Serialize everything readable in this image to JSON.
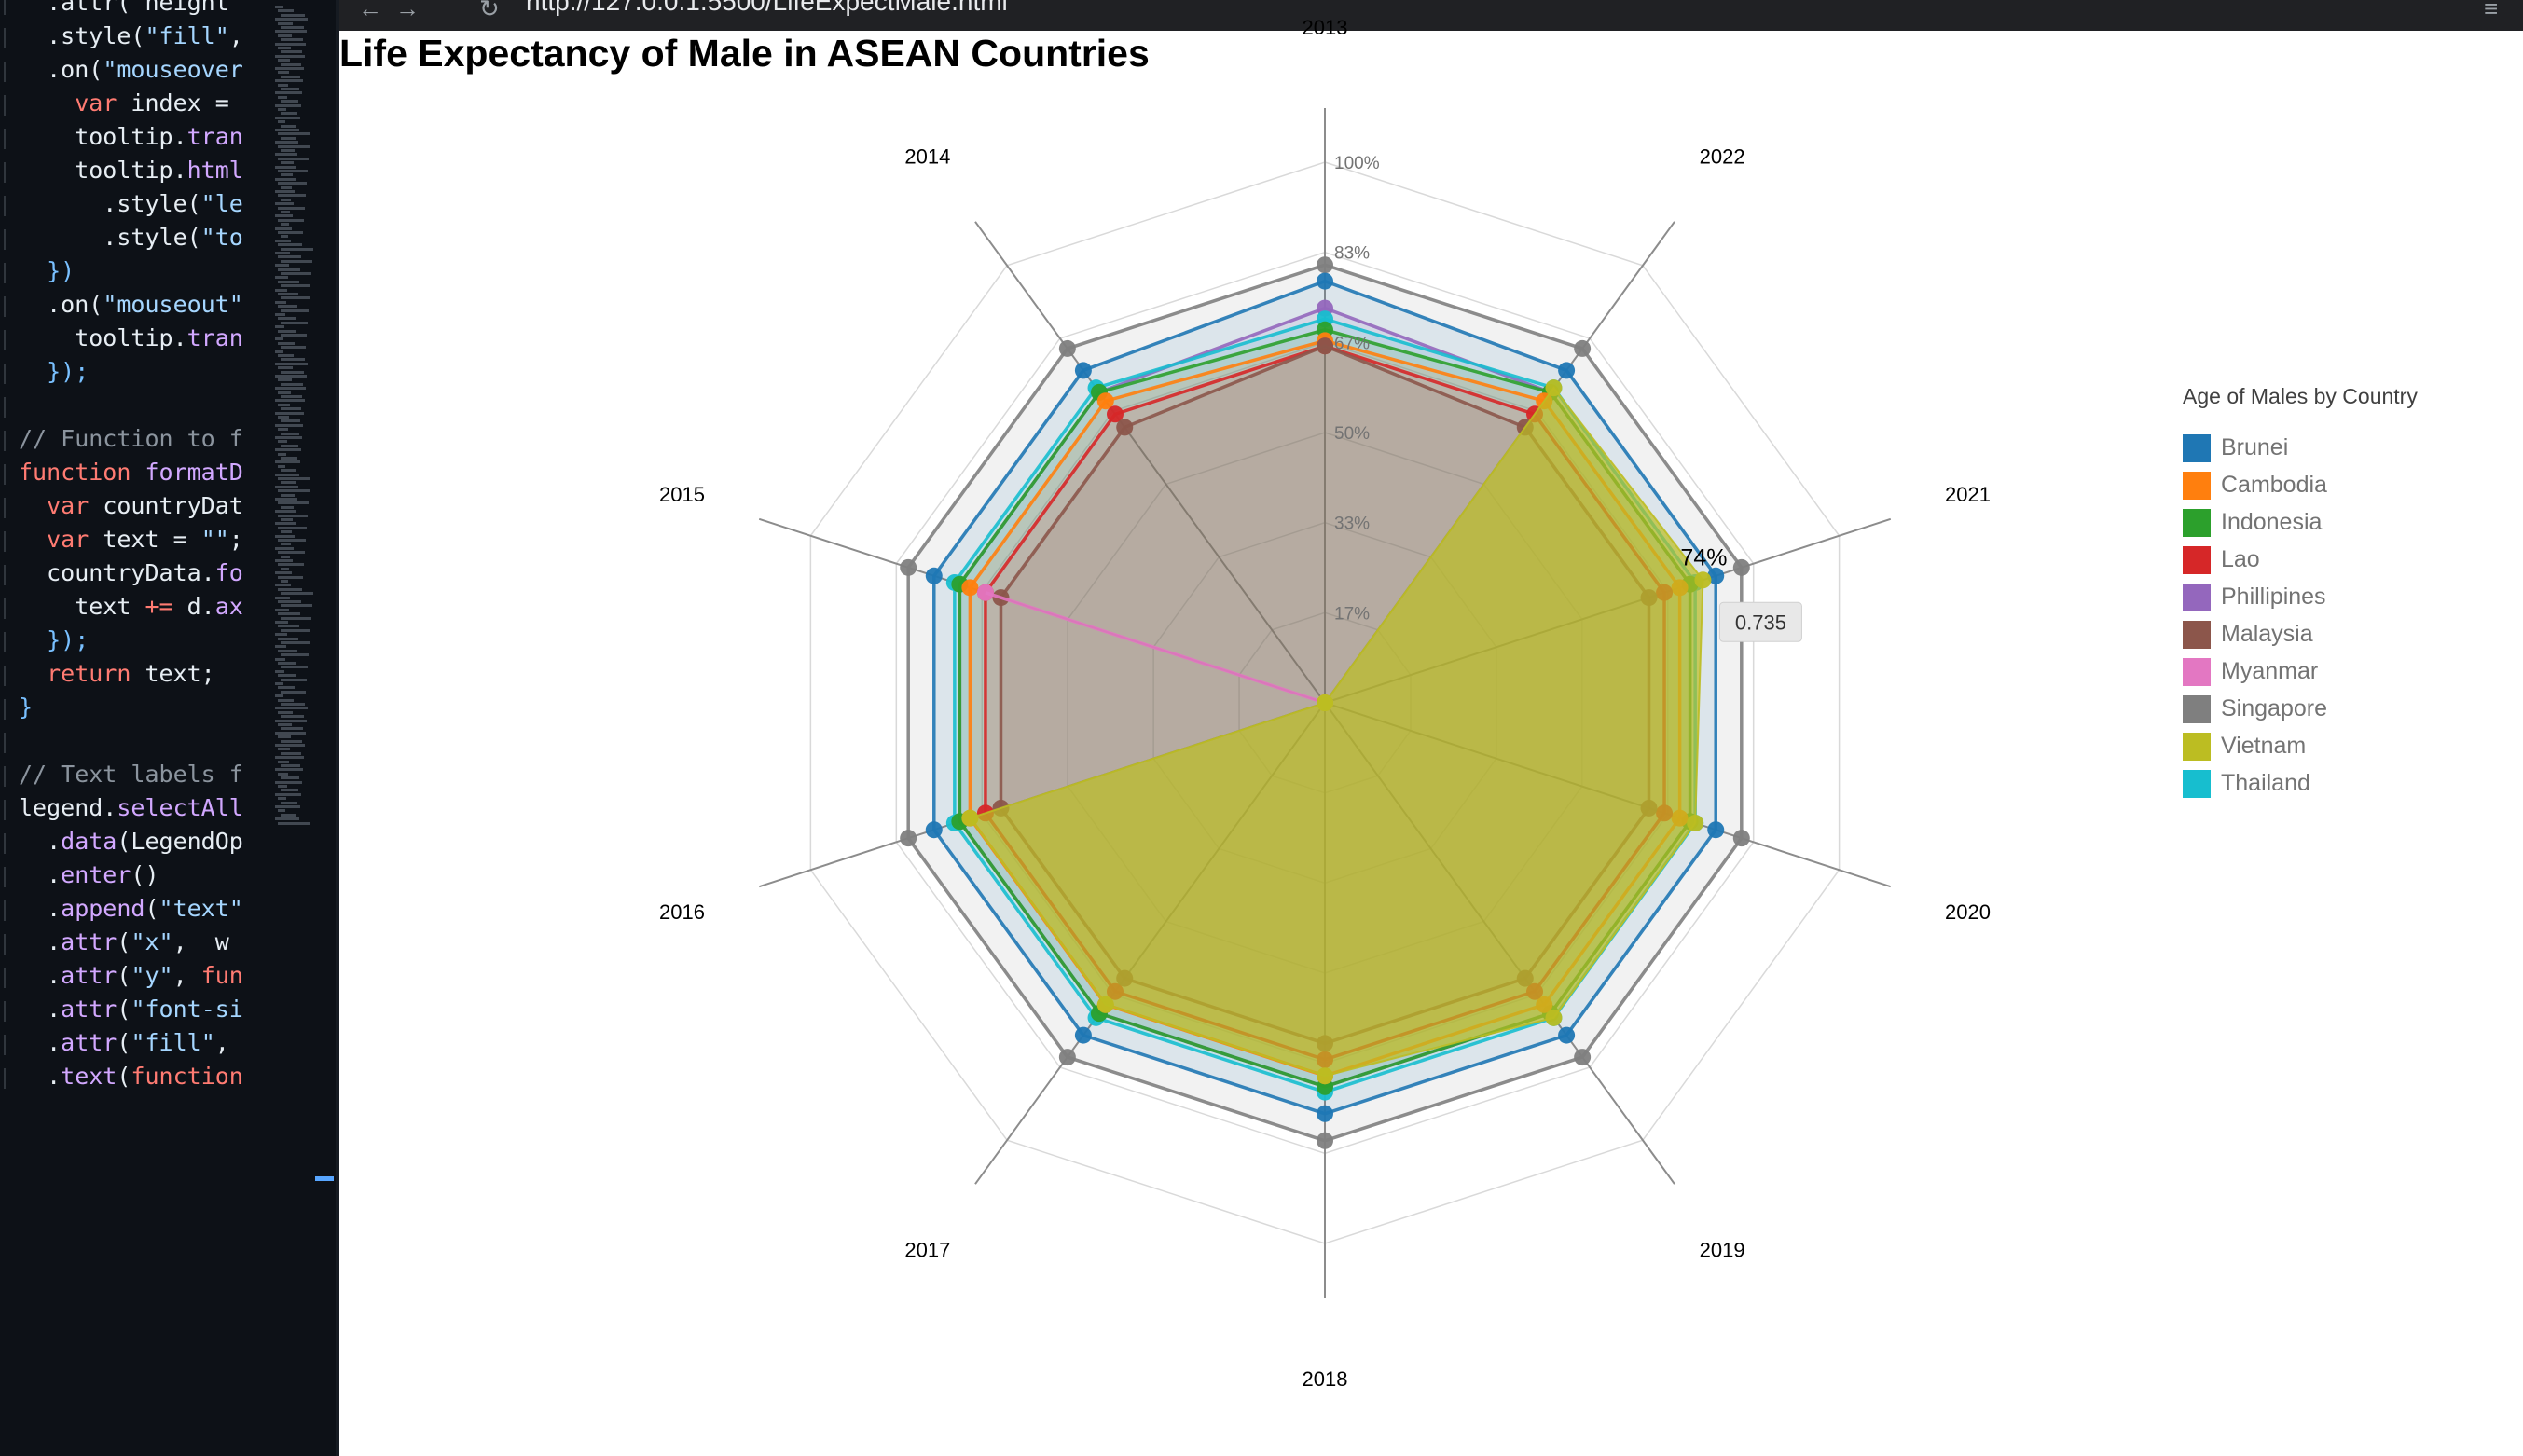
{
  "editor": {
    "lines": [
      [
        [
          "  .attr(\"height\"",
          ""
        ]
      ],
      [
        [
          "  .style(",
          ""
        ],
        [
          "\"fill\"",
          "str"
        ],
        [
          ",",
          ""
        ]
      ],
      [
        [
          "  .on(",
          ""
        ],
        [
          "\"mouseover",
          "str"
        ]
      ],
      [
        [
          "    ",
          ""
        ],
        [
          "var",
          "kw"
        ],
        [
          " index =",
          ""
        ]
      ],
      [
        [
          "    tooltip.",
          ""
        ],
        [
          "tran",
          "fn"
        ]
      ],
      [
        [
          "    tooltip.",
          ""
        ],
        [
          "html",
          "fn"
        ]
      ],
      [
        [
          "      .style(",
          ""
        ],
        [
          "\"le",
          "str"
        ]
      ],
      [
        [
          "      .style(",
          ""
        ],
        [
          "\"to",
          "str"
        ]
      ],
      [
        [
          "  })",
          "pl"
        ]
      ],
      [
        [
          "  .on(",
          ""
        ],
        [
          "\"mouseout\"",
          "str"
        ]
      ],
      [
        [
          "    tooltip.",
          ""
        ],
        [
          "tran",
          "fn"
        ]
      ],
      [
        [
          "  });",
          "pl"
        ]
      ],
      [
        [
          "",
          ""
        ]
      ],
      [
        [
          "// Function to f",
          "cm"
        ]
      ],
      [
        [
          "function",
          "kw"
        ],
        [
          " formatD",
          "fn"
        ]
      ],
      [
        [
          "  ",
          ""
        ],
        [
          "var",
          "kw"
        ],
        [
          " countryDat",
          ""
        ]
      ],
      [
        [
          "  ",
          ""
        ],
        [
          "var",
          "kw"
        ],
        [
          " text = ",
          ""
        ],
        [
          "\"\"",
          "str"
        ],
        [
          ";",
          ""
        ]
      ],
      [
        [
          "  countryData.",
          ""
        ],
        [
          "fo",
          "fn"
        ]
      ],
      [
        [
          "    text ",
          ""
        ],
        [
          "+=",
          "kw"
        ],
        [
          " d.",
          ""
        ],
        [
          "ax",
          "fn"
        ]
      ],
      [
        [
          "  });",
          "pl"
        ]
      ],
      [
        [
          "  ",
          ""
        ],
        [
          "return",
          "kw"
        ],
        [
          " text;",
          ""
        ]
      ],
      [
        [
          "}",
          "pl"
        ]
      ],
      [
        [
          "",
          ""
        ]
      ],
      [
        [
          "// Text labels f",
          "cm"
        ]
      ],
      [
        [
          "legend.",
          ""
        ],
        [
          "selectAll",
          "fn"
        ]
      ],
      [
        [
          "  .",
          ""
        ],
        [
          "data",
          "fn"
        ],
        [
          "(LegendOp",
          ""
        ]
      ],
      [
        [
          "  .",
          ""
        ],
        [
          "enter",
          "fn"
        ],
        [
          "()",
          ""
        ]
      ],
      [
        [
          "  .",
          ""
        ],
        [
          "append",
          "fn"
        ],
        [
          "(",
          ""
        ],
        [
          "\"text\"",
          "str"
        ]
      ],
      [
        [
          "  .",
          ""
        ],
        [
          "attr",
          "fn"
        ],
        [
          "(",
          ""
        ],
        [
          "\"x\"",
          "str"
        ],
        [
          ",  w",
          ""
        ]
      ],
      [
        [
          "  .",
          ""
        ],
        [
          "attr",
          "fn"
        ],
        [
          "(",
          ""
        ],
        [
          "\"y\"",
          "str"
        ],
        [
          ", ",
          ""
        ],
        [
          "fun",
          "kw"
        ]
      ],
      [
        [
          "  .",
          ""
        ],
        [
          "attr",
          "fn"
        ],
        [
          "(",
          ""
        ],
        [
          "\"font-si",
          "str"
        ]
      ],
      [
        [
          "  .",
          ""
        ],
        [
          "attr",
          "fn"
        ],
        [
          "(",
          ""
        ],
        [
          "\"fill\"",
          "str"
        ],
        [
          ",",
          ""
        ]
      ],
      [
        [
          "  .",
          ""
        ],
        [
          "text",
          "fn"
        ],
        [
          "(",
          ""
        ],
        [
          "function",
          "kw"
        ]
      ]
    ]
  },
  "browser": {
    "url": "http://127.0.0.1:5500/LifeExpectMale.html"
  },
  "page": {
    "title": "Life Expectancy of Male in ASEAN Countries"
  },
  "chart_data": {
    "type": "radar",
    "title": "Life Expectancy of Male in ASEAN Countries",
    "axes": [
      "2013",
      "2022",
      "2021",
      "2020",
      "2019",
      "2018",
      "2017",
      "2016",
      "2015",
      "2014"
    ],
    "rlim": [
      0,
      1
    ],
    "ticks": [
      "17%",
      "33%",
      "50%",
      "67%",
      "83%",
      "100%"
    ],
    "legend_title": "Age of Males by Country",
    "legend_position": "right",
    "series": [
      {
        "name": "Singapore",
        "color": "#7f7f7f",
        "values": [
          0.81,
          0.81,
          0.81,
          0.81,
          0.81,
          0.81,
          0.81,
          0.81,
          0.81,
          0.81
        ]
      },
      {
        "name": "Brunei",
        "color": "#1f77b4",
        "values": [
          0.78,
          0.76,
          0.76,
          0.76,
          0.76,
          0.76,
          0.76,
          0.76,
          0.76,
          0.76
        ]
      },
      {
        "name": "Phillipines",
        "color": "#9467bd",
        "values": [
          0.73,
          0.71,
          0.71,
          0.71,
          0.71,
          0.71,
          0.71,
          0.71,
          0.71,
          0.71
        ]
      },
      {
        "name": "Thailand",
        "color": "#17becf",
        "values": [
          0.71,
          0.72,
          0.72,
          0.72,
          0.72,
          0.72,
          0.72,
          0.72,
          0.72,
          0.72
        ]
      },
      {
        "name": "Indonesia",
        "color": "#2ca02c",
        "values": [
          0.69,
          0.71,
          0.71,
          0.71,
          0.71,
          0.71,
          0.71,
          0.71,
          0.71,
          0.71
        ]
      },
      {
        "name": "Cambodia",
        "color": "#ff7f0e",
        "values": [
          0.67,
          0.69,
          0.69,
          0.69,
          0.69,
          0.69,
          0.69,
          0.69,
          0.69,
          0.69
        ]
      },
      {
        "name": "Lao",
        "color": "#d62728",
        "values": [
          0.66,
          0.66,
          0.66,
          0.66,
          0.66,
          0.66,
          0.66,
          0.66,
          0.66,
          0.66
        ]
      },
      {
        "name": "Malaysia",
        "color": "#8c564b",
        "values": [
          0.66,
          0.63,
          0.63,
          0.63,
          0.63,
          0.63,
          0.63,
          0.63,
          0.63,
          0.63
        ]
      },
      {
        "name": "Myanmar",
        "color": "#e377c2",
        "values": [
          0.0,
          0.0,
          0.0,
          0.0,
          0.0,
          0.0,
          0.0,
          0.0,
          0.66,
          0.0
        ]
      },
      {
        "name": "Vietnam",
        "color": "#bcbd22",
        "values": [
          0.0,
          0.72,
          0.735,
          0.72,
          0.72,
          0.69,
          0.69,
          0.69,
          0.0,
          0.0
        ]
      }
    ],
    "legend_order": [
      "Brunei",
      "Cambodia",
      "Indonesia",
      "Lao",
      "Phillipines",
      "Malaysia",
      "Myanmar",
      "Singapore",
      "Vietnam",
      "Thailand"
    ],
    "hover": {
      "series": "Vietnam",
      "axis": "2021",
      "label": "74%",
      "tooltip": "0.735"
    }
  }
}
